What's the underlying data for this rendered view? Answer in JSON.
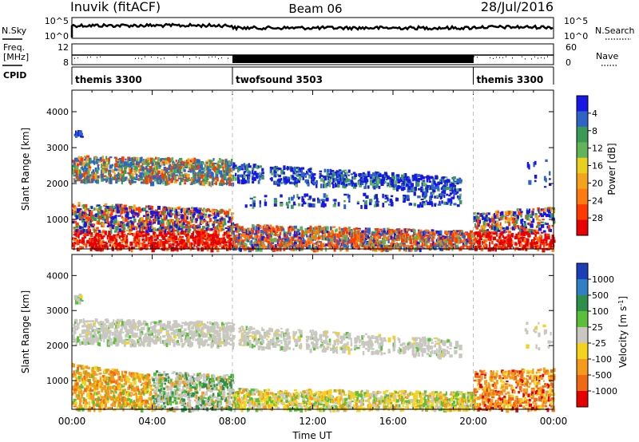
{
  "header": {
    "station": "Inuvik (fitACF)",
    "beam": "Beam 06",
    "date": "28/Jul/2016"
  },
  "strips": {
    "nsky_label": "N.Sky",
    "nsearch_label": "N.Search",
    "freq_label_1": "Freq.",
    "freq_label_2": "[MHz]",
    "nave_label": "Nave",
    "cpid_label": "CPID",
    "nsky_ticks": [
      "10^5",
      "10^0"
    ],
    "nsearch_ticks": [
      "10^5",
      "10^0"
    ],
    "freq_ticks": [
      "12",
      "8"
    ],
    "nave_ticks": [
      "60",
      "0"
    ]
  },
  "cpid_segments": [
    {
      "name": "themis 3300",
      "start_hour": 0,
      "end_hour": 8
    },
    {
      "name": "twofsound 3503",
      "start_hour": 8,
      "end_hour": 20
    },
    {
      "name": "themis 3300",
      "start_hour": 20,
      "end_hour": 24
    }
  ],
  "chart_data": [
    {
      "type": "heatmap",
      "panel": "power",
      "ylabel": "Slant Range [km]",
      "xlabel": "Time UT",
      "x_ticks": [
        "00:00",
        "04:00",
        "08:00",
        "12:00",
        "16:00",
        "20:00",
        "00:00"
      ],
      "y_ticks": [
        1000,
        2000,
        3000,
        4000
      ],
      "xlim_hours": [
        0,
        24
      ],
      "ylim_km": [
        180,
        4600
      ],
      "colorbar": {
        "label": "Power [dB]",
        "ticks": [
          "4",
          "8",
          "12",
          "16",
          "20",
          "24",
          "28"
        ],
        "colors": [
          "#1717e6",
          "#2e64c8",
          "#3b9a55",
          "#62b45a",
          "#e8d020",
          "#f3a31c",
          "#ff7a10",
          "#ff3a00",
          "#e80000"
        ]
      }
    },
    {
      "type": "heatmap",
      "panel": "velocity",
      "ylabel": "Slant Range [km]",
      "xlabel": "Time UT",
      "x_ticks": [
        "00:00",
        "04:00",
        "08:00",
        "12:00",
        "16:00",
        "20:00",
        "00:00"
      ],
      "y_ticks": [
        1000,
        2000,
        3000,
        4000
      ],
      "xlim_hours": [
        0,
        24
      ],
      "ylim_km": [
        180,
        4600
      ],
      "colorbar": {
        "label": "Velocity [m s^-1]",
        "ticks": [
          "1000",
          "500",
          "100",
          "25",
          "-25",
          "-100",
          "-500",
          "-1000"
        ],
        "colors": [
          "#1c3fb8",
          "#2e7fc4",
          "#2e8f4a",
          "#5cbf3a",
          "#c8c8c0",
          "#f5d21e",
          "#f59a1a",
          "#f06a14",
          "#e60000"
        ]
      }
    }
  ]
}
